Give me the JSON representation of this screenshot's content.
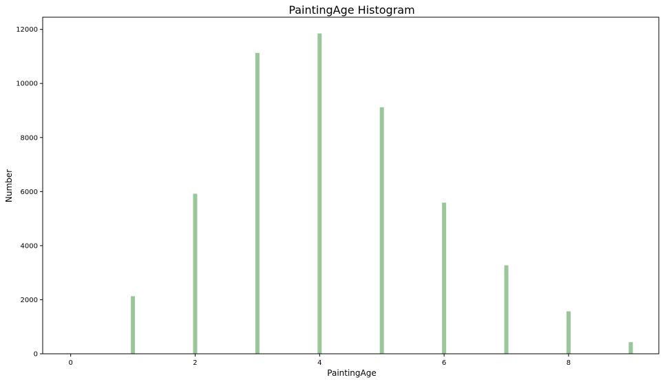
{
  "chart_data": {
    "type": "bar",
    "title": "PaintingAge Histogram",
    "xlabel": "PaintingAge",
    "ylabel": "Number",
    "x": [
      0,
      1,
      2,
      3,
      4,
      5,
      6,
      7,
      8,
      9
    ],
    "values": [
      0,
      2130,
      5920,
      11130,
      11850,
      9120,
      5590,
      3270,
      1570,
      430
    ],
    "xlim": [
      -0.45,
      9.45
    ],
    "ylim": [
      0,
      12450
    ],
    "xticks": [
      0,
      2,
      4,
      6,
      8
    ],
    "yticks": [
      0,
      2000,
      4000,
      6000,
      8000,
      10000,
      12000
    ],
    "bar_color": "#99c799",
    "grid": false,
    "legend": "none"
  }
}
